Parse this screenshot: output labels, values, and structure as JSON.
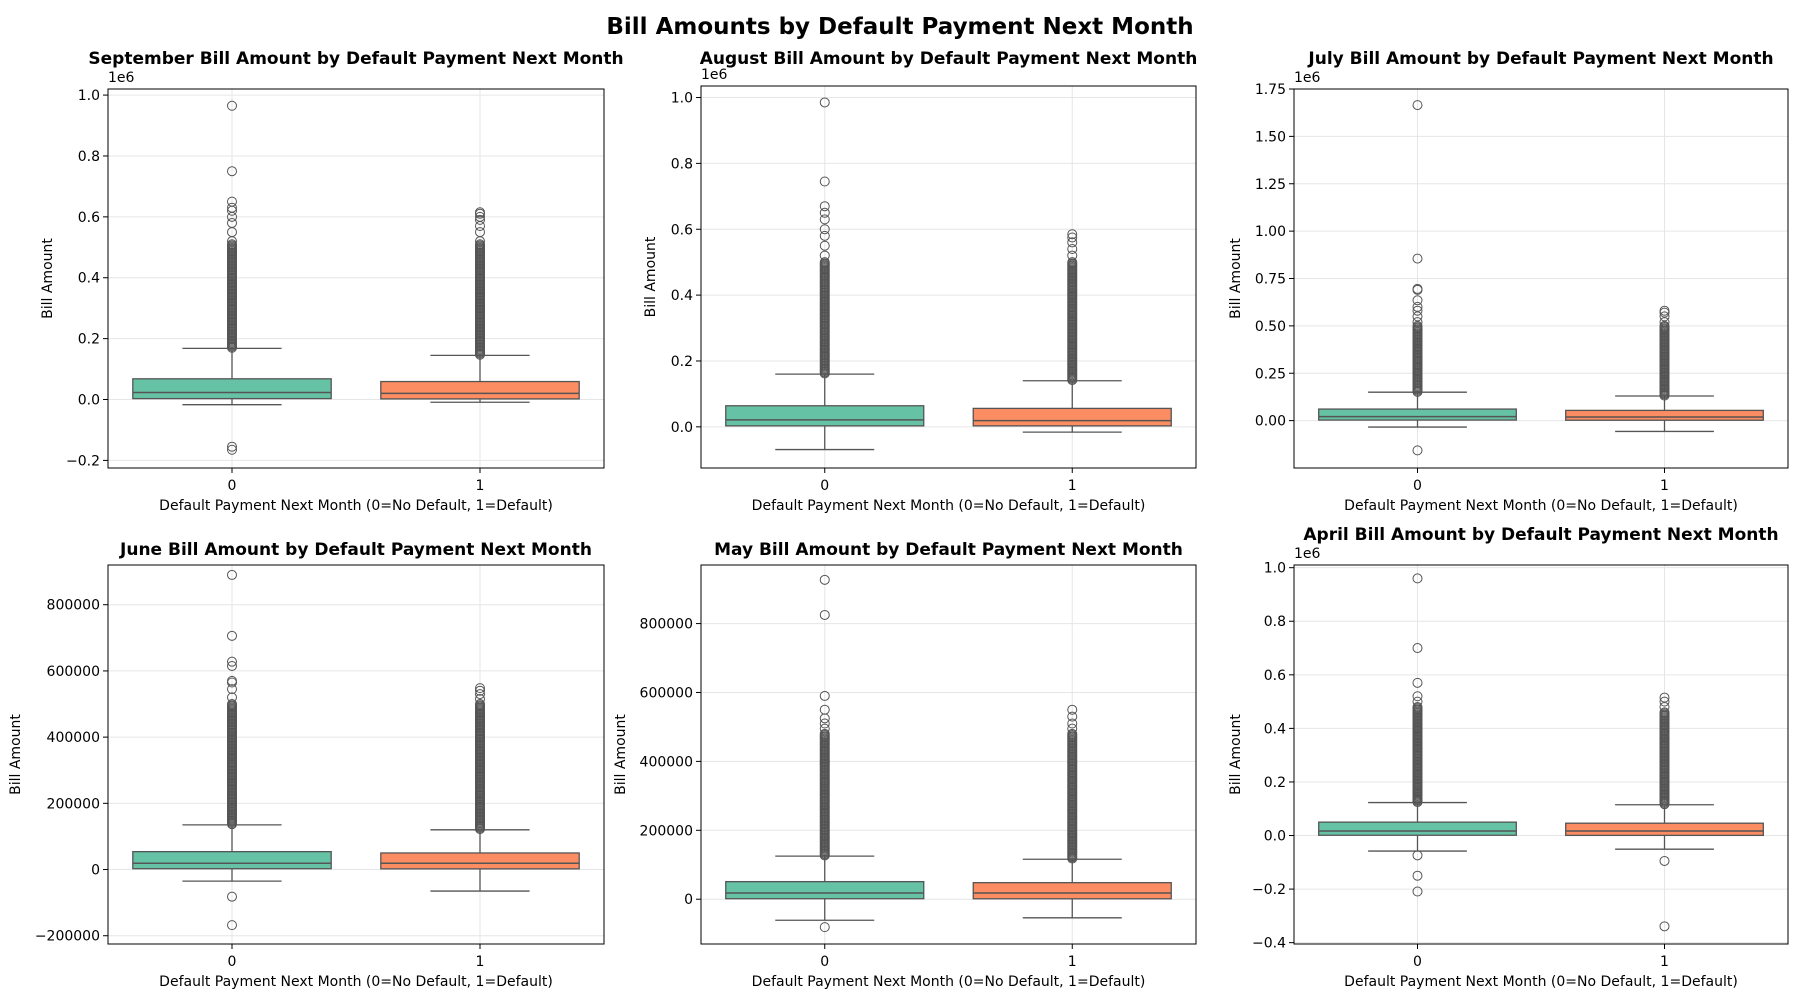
{
  "suptitle": "Bill Amounts by Default Payment Next Month",
  "colors": {
    "group0": "#66c2a5",
    "group1": "#fc8d62",
    "line": "#555555",
    "grid": "#e6e6e6"
  },
  "chart_data": [
    {
      "type": "box",
      "title": "September Bill Amount by Default Payment Next Month",
      "xlabel": "Default Payment Next Month (0=No Default, 1=Default)",
      "ylabel": "Bill Amount",
      "categories": [
        "0",
        "1"
      ],
      "ylim": [
        -0.225,
        1.02
      ],
      "yticks": [
        -0.2,
        0.0,
        0.2,
        0.4,
        0.6,
        0.8,
        1.0
      ],
      "ytick_labels": [
        "−0.2",
        "0.0",
        "0.2",
        "0.4",
        "0.6",
        "0.8",
        "1.0"
      ],
      "offset_label": "1e6",
      "grid": true,
      "boxes": [
        {
          "q1": 0.003,
          "median": 0.023,
          "q3": 0.068,
          "whisker_low": -0.017,
          "whisker_high": 0.168,
          "outliers_dense": [
            0.17,
            0.51
          ],
          "outliers": [
            -0.165,
            -0.155,
            0.52,
            0.55,
            0.58,
            0.6,
            0.62,
            0.63,
            0.65,
            0.75,
            0.965
          ]
        },
        {
          "q1": 0.002,
          "median": 0.02,
          "q3": 0.059,
          "whisker_low": -0.009,
          "whisker_high": 0.145,
          "outliers_dense": [
            0.147,
            0.51
          ],
          "outliers": [
            0.52,
            0.55,
            0.57,
            0.59,
            0.6,
            0.61,
            0.615
          ]
        }
      ]
    },
    {
      "type": "box",
      "title": "August Bill Amount by Default Payment Next Month",
      "xlabel": "Default Payment Next Month (0=No Default, 1=Default)",
      "ylabel": "Bill Amount",
      "categories": [
        "0",
        "1"
      ],
      "ylim": [
        -0.125,
        1.035
      ],
      "yticks": [
        0.0,
        0.2,
        0.4,
        0.6,
        0.8,
        1.0
      ],
      "ytick_labels": [
        "0.0",
        "0.2",
        "0.4",
        "0.6",
        "0.8",
        "1.0"
      ],
      "offset_label": "1e6",
      "grid": true,
      "boxes": [
        {
          "q1": 0.003,
          "median": 0.021,
          "q3": 0.064,
          "whisker_low": -0.069,
          "whisker_high": 0.16,
          "outliers_dense": [
            0.162,
            0.5
          ],
          "outliers": [
            0.52,
            0.55,
            0.58,
            0.6,
            0.63,
            0.65,
            0.67,
            0.745,
            0.985
          ]
        },
        {
          "q1": 0.003,
          "median": 0.019,
          "q3": 0.056,
          "whisker_low": -0.016,
          "whisker_high": 0.14,
          "outliers_dense": [
            0.142,
            0.5
          ],
          "outliers": [
            0.52,
            0.54,
            0.56,
            0.575,
            0.585
          ]
        }
      ]
    },
    {
      "type": "box",
      "title": "July Bill Amount by Default Payment Next Month",
      "xlabel": "Default Payment Next Month (0=No Default, 1=Default)",
      "ylabel": "Bill Amount",
      "categories": [
        "0",
        "1"
      ],
      "ylim": [
        -0.25,
        1.75
      ],
      "yticks": [
        0.0,
        0.25,
        0.5,
        0.75,
        1.0,
        1.25,
        1.5,
        1.75
      ],
      "ytick_labels": [
        "0.00",
        "0.25",
        "0.50",
        "0.75",
        "1.00",
        "1.25",
        "1.50",
        "1.75"
      ],
      "offset_label": "1e6",
      "grid": true,
      "boxes": [
        {
          "q1": 0.003,
          "median": 0.021,
          "q3": 0.061,
          "whisker_low": -0.034,
          "whisker_high": 0.15,
          "outliers_dense": [
            0.152,
            0.5
          ],
          "outliers": [
            -0.157,
            0.52,
            0.55,
            0.58,
            0.6,
            0.635,
            0.69,
            0.695,
            0.855,
            1.665
          ]
        },
        {
          "q1": 0.002,
          "median": 0.019,
          "q3": 0.054,
          "whisker_low": -0.057,
          "whisker_high": 0.13,
          "outliers_dense": [
            0.132,
            0.5
          ],
          "outliers": [
            0.52,
            0.55,
            0.57,
            0.58
          ]
        }
      ]
    },
    {
      "type": "box",
      "title": "June Bill Amount by Default Payment Next Month",
      "xlabel": "Default Payment Next Month (0=No Default, 1=Default)",
      "ylabel": "Bill Amount",
      "categories": [
        "0",
        "1"
      ],
      "ylim": [
        -225000,
        920000
      ],
      "yticks": [
        -200000,
        0,
        200000,
        400000,
        600000,
        800000
      ],
      "ytick_labels": [
        "−200000",
        "0",
        "200000",
        "400000",
        "600000",
        "800000"
      ],
      "offset_label": "",
      "grid": true,
      "boxes": [
        {
          "q1": 2500,
          "median": 19000,
          "q3": 54000,
          "whisker_low": -35000,
          "whisker_high": 135000,
          "outliers_dense": [
            137000,
            500000
          ],
          "outliers": [
            -168000,
            -82000,
            520000,
            545000,
            565000,
            570000,
            615000,
            628000,
            706000,
            890000
          ]
        },
        {
          "q1": 2000,
          "median": 19000,
          "q3": 50000,
          "whisker_low": -65000,
          "whisker_high": 120000,
          "outliers_dense": [
            122000,
            500000
          ],
          "outliers": [
            515000,
            530000,
            540000,
            548000
          ]
        }
      ]
    },
    {
      "type": "box",
      "title": "May Bill Amount by Default Payment Next Month",
      "xlabel": "Default Payment Next Month (0=No Default, 1=Default)",
      "ylabel": "Bill Amount",
      "categories": [
        "0",
        "1"
      ],
      "ylim": [
        -130000,
        970000
      ],
      "yticks": [
        0,
        200000,
        400000,
        600000,
        800000
      ],
      "ytick_labels": [
        "0",
        "200000",
        "400000",
        "600000",
        "800000"
      ],
      "offset_label": "",
      "grid": true,
      "boxes": [
        {
          "q1": 1500,
          "median": 18000,
          "q3": 51000,
          "whisker_low": -61000,
          "whisker_high": 125000,
          "outliers_dense": [
            127000,
            480000
          ],
          "outliers": [
            -81000,
            495000,
            510000,
            525000,
            550000,
            590000,
            825000,
            927000
          ]
        },
        {
          "q1": 1200,
          "median": 18000,
          "q3": 48000,
          "whisker_low": -54000,
          "whisker_high": 116000,
          "outliers_dense": [
            118000,
            480000
          ],
          "outliers": [
            495000,
            510000,
            530000,
            550000
          ]
        }
      ]
    },
    {
      "type": "box",
      "title": "April Bill Amount by Default Payment Next Month",
      "xlabel": "Default Payment Next Month (0=No Default, 1=Default)",
      "ylabel": "Bill Amount",
      "categories": [
        "0",
        "1"
      ],
      "ylim": [
        -0.405,
        1.01
      ],
      "yticks": [
        -0.4,
        -0.2,
        0.0,
        0.2,
        0.4,
        0.6,
        0.8,
        1.0
      ],
      "ytick_labels": [
        "−0.4",
        "−0.2",
        "0.0",
        "0.2",
        "0.4",
        "0.6",
        "0.8",
        "1.0"
      ],
      "offset_label": "1e6",
      "grid": true,
      "boxes": [
        {
          "q1": 0.001,
          "median": 0.017,
          "q3": 0.05,
          "whisker_low": -0.058,
          "whisker_high": 0.123,
          "outliers_dense": [
            0.125,
            0.48
          ],
          "outliers": [
            -0.209,
            -0.15,
            -0.074,
            0.5,
            0.52,
            0.57,
            0.7,
            0.96
          ]
        },
        {
          "q1": 0.0005,
          "median": 0.017,
          "q3": 0.046,
          "whisker_low": -0.051,
          "whisker_high": 0.115,
          "outliers_dense": [
            0.117,
            0.46
          ],
          "outliers": [
            -0.339,
            -0.095,
            0.48,
            0.5,
            0.515
          ]
        }
      ]
    }
  ]
}
